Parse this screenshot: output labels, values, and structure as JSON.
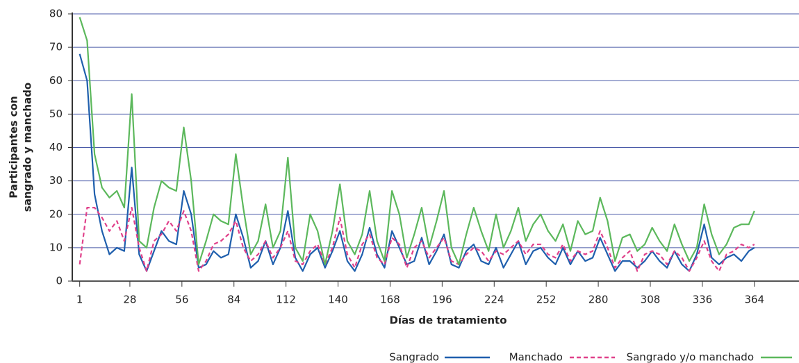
{
  "chart_data": {
    "type": "line",
    "ylabel": [
      "Participantes con",
      "sangrado y manchado"
    ],
    "xlabel": "Días de tratamiento",
    "x": [
      1,
      5,
      9,
      13,
      17,
      21,
      25,
      29,
      33,
      37,
      41,
      45,
      49,
      53,
      57,
      61,
      65,
      69,
      73,
      77,
      81,
      85,
      89,
      93,
      97,
      101,
      105,
      109,
      113,
      117,
      121,
      125,
      129,
      133,
      137,
      141,
      145,
      149,
      153,
      157,
      161,
      165,
      169,
      173,
      177,
      181,
      185,
      189,
      193,
      197,
      201,
      205,
      209,
      213,
      217,
      221,
      225,
      229,
      233,
      237,
      241,
      245,
      249,
      253,
      257,
      261,
      265,
      269,
      273,
      277,
      281,
      285,
      289,
      293,
      297,
      301,
      305,
      309,
      313,
      317,
      321,
      325,
      329,
      333,
      337,
      341,
      345,
      349,
      353,
      357,
      361,
      364
    ],
    "series": [
      {
        "name": "Sangrado",
        "color": "#1f5fad",
        "dashed": false,
        "values": [
          68,
          60,
          26,
          15,
          8,
          10,
          9,
          34,
          8,
          3,
          9,
          15,
          12,
          11,
          27,
          20,
          4,
          5,
          9,
          7,
          8,
          20,
          13,
          4,
          6,
          12,
          5,
          10,
          21,
          7,
          3,
          8,
          10,
          4,
          9,
          15,
          6,
          3,
          8,
          16,
          8,
          4,
          15,
          10,
          5,
          6,
          13,
          5,
          9,
          14,
          5,
          4,
          9,
          11,
          6,
          5,
          10,
          4,
          8,
          12,
          5,
          9,
          10,
          7,
          5,
          10,
          5,
          9,
          6,
          7,
          13,
          8,
          3,
          6,
          6,
          4,
          6,
          9,
          6,
          4,
          9,
          5,
          3,
          8,
          17,
          7,
          5,
          7,
          8,
          6,
          9,
          10
        ]
      },
      {
        "name": "Manchado",
        "color": "#e0408a",
        "dashed": true,
        "values": [
          5,
          22,
          22,
          19,
          15,
          18,
          12,
          22,
          10,
          3,
          12,
          14,
          18,
          15,
          21,
          15,
          3,
          6,
          11,
          12,
          14,
          18,
          10,
          6,
          8,
          12,
          7,
          10,
          15,
          6,
          5,
          9,
          11,
          5,
          10,
          19,
          8,
          4,
          11,
          14,
          7,
          5,
          13,
          11,
          4,
          10,
          12,
          7,
          10,
          13,
          6,
          5,
          8,
          10,
          9,
          6,
          9,
          8,
          10,
          12,
          8,
          11,
          11,
          8,
          7,
          11,
          6,
          9,
          8,
          9,
          15,
          10,
          4,
          7,
          9,
          3,
          8,
          9,
          8,
          5,
          9,
          7,
          3,
          7,
          12,
          6,
          3,
          8,
          9,
          11,
          10,
          11
        ]
      },
      {
        "name": "Sangrado y/o manchado",
        "color": "#5cb85c",
        "dashed": false,
        "values": [
          79,
          72,
          38,
          28,
          25,
          27,
          22,
          56,
          12,
          10,
          22,
          30,
          28,
          27,
          46,
          30,
          5,
          12,
          20,
          18,
          17,
          38,
          22,
          8,
          12,
          23,
          10,
          15,
          37,
          10,
          6,
          20,
          15,
          5,
          15,
          29,
          12,
          8,
          14,
          27,
          12,
          6,
          27,
          20,
          7,
          14,
          22,
          10,
          18,
          27,
          10,
          5,
          14,
          22,
          15,
          9,
          20,
          10,
          15,
          22,
          12,
          17,
          20,
          15,
          12,
          17,
          9,
          18,
          14,
          15,
          25,
          18,
          6,
          13,
          14,
          9,
          11,
          16,
          12,
          9,
          17,
          11,
          6,
          10,
          23,
          14,
          8,
          11,
          16,
          17,
          17,
          21
        ]
      }
    ],
    "xlim": [
      -3,
      388
    ],
    "ylim": [
      0,
      80
    ],
    "xticks": [
      1,
      28,
      56,
      84,
      112,
      140,
      168,
      196,
      224,
      252,
      280,
      308,
      336,
      364
    ],
    "yticks": [
      0,
      10,
      20,
      30,
      40,
      50,
      60,
      70,
      80
    ],
    "grid": true
  }
}
